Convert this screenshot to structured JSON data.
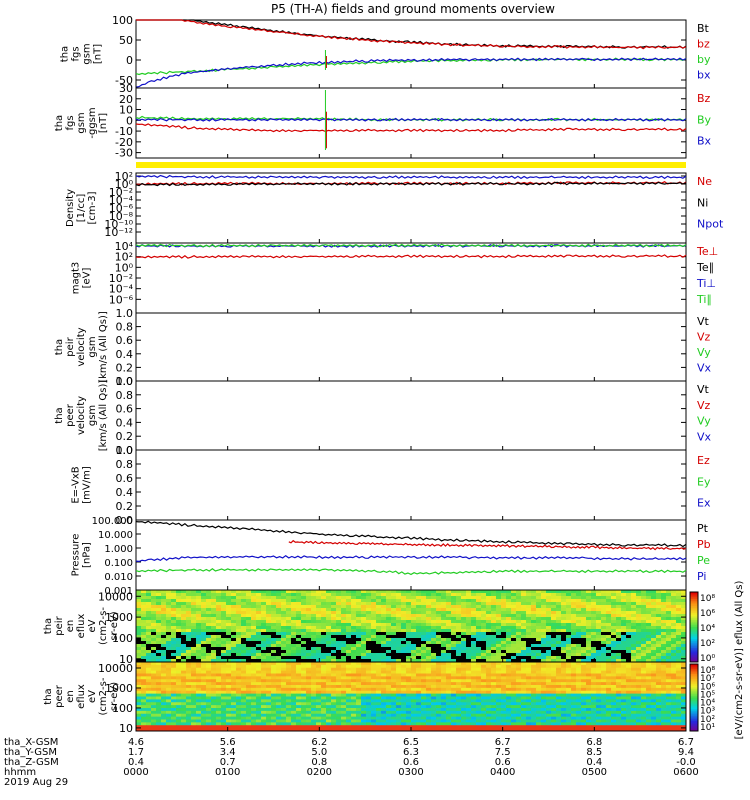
{
  "title": "P5 (TH-A) fields and ground moments overview",
  "colors": {
    "black": "#000000",
    "red": "#d40000",
    "green": "#22cc22",
    "blue": "#1010c8",
    "yellow": "#ffee00",
    "frame": "#000000"
  },
  "chart_data": [
    {
      "type": "line",
      "panel": "fgs-gsm",
      "ylabel": [
        "tha",
        "fgs",
        "gsm",
        "[nT]"
      ],
      "ylim": [
        -70,
        100
      ],
      "yticks": [
        100,
        50,
        0,
        -50
      ],
      "legend": [
        {
          "label": "Bt",
          "color": "black"
        },
        {
          "label": "bz",
          "color": "red"
        },
        {
          "label": "by",
          "color": "green"
        },
        {
          "label": "bx",
          "color": "blue"
        }
      ],
      "series": [
        {
          "name": "Bt",
          "color": "black",
          "x": [
            0,
            10,
            20,
            30,
            40,
            50,
            60,
            70,
            80,
            90,
            100,
            110,
            120,
            130,
            140,
            150,
            160,
            170,
            180,
            190,
            200,
            220,
            240,
            260,
            280,
            300,
            320,
            340,
            360
          ],
          "values": [
            133,
            122,
            112,
            104,
            97,
            91,
            86,
            81,
            76,
            72,
            68,
            63,
            59,
            56,
            53,
            50,
            47,
            45,
            43,
            41,
            39,
            36,
            34,
            33,
            32,
            32,
            31,
            31,
            31
          ]
        },
        {
          "name": "bz",
          "color": "red",
          "x": [
            0,
            10,
            20,
            30,
            40,
            50,
            60,
            70,
            80,
            90,
            100,
            110,
            120,
            130,
            140,
            150,
            160,
            170,
            180,
            190,
            200,
            220,
            240,
            260,
            280,
            300,
            320,
            340,
            360
          ],
          "values": [
            123,
            114,
            106,
            99,
            93,
            87,
            83,
            78,
            74,
            70,
            66,
            61,
            58,
            55,
            52,
            49,
            46,
            44,
            42,
            40,
            38,
            35,
            33,
            32,
            31,
            31,
            30,
            30,
            30
          ]
        },
        {
          "name": "by",
          "color": "green",
          "x": [
            0,
            20,
            40,
            60,
            80,
            100,
            120,
            140,
            160,
            180,
            200,
            240,
            280,
            320,
            360
          ],
          "values": [
            -37,
            -33,
            -29,
            -25,
            -21,
            -17,
            -13,
            -10,
            -7,
            -5,
            -3,
            -1,
            0,
            0,
            0
          ]
        },
        {
          "name": "bx",
          "color": "blue",
          "x": [
            0,
            10,
            20,
            30,
            40,
            60,
            80,
            100,
            120,
            140,
            160,
            180,
            200,
            240,
            280,
            320,
            360
          ],
          "values": [
            -70,
            -56,
            -45,
            -37,
            -31,
            -23,
            -17,
            -12,
            -8,
            -5,
            -3,
            -2,
            -1,
            0,
            0,
            0,
            0
          ]
        }
      ]
    },
    {
      "type": "line",
      "panel": "fgs-gse",
      "ylabel": [
        "tha",
        "fgs",
        "gsm",
        "-ggsm",
        "[nT]"
      ],
      "ylim": [
        -35,
        30
      ],
      "yticks": [
        30,
        20,
        10,
        0,
        -10,
        -20,
        -30
      ],
      "legend": [
        {
          "label": "Bz",
          "color": "red"
        },
        {
          "label": "By",
          "color": "green"
        },
        {
          "label": "Bx",
          "color": "blue"
        }
      ],
      "series": [
        {
          "name": "Bz",
          "color": "red",
          "x": [
            0,
            20,
            40,
            60,
            80,
            100,
            120,
            140,
            160,
            200,
            240,
            280,
            320,
            360
          ],
          "values": [
            -4,
            -6,
            -8,
            -9,
            -10,
            -10,
            -10,
            -10,
            -10,
            -10,
            -10,
            -9,
            -9,
            -9
          ]
        },
        {
          "name": "By",
          "color": "green",
          "x": [
            0,
            40,
            80,
            120,
            160,
            200,
            240,
            280,
            320,
            360
          ],
          "values": [
            2,
            1,
            1,
            1,
            0,
            0,
            0,
            0,
            0,
            0
          ]
        },
        {
          "name": "Bx",
          "color": "blue",
          "x": [
            0,
            40,
            80,
            120,
            160,
            200,
            240,
            280,
            320,
            360
          ],
          "values": [
            0,
            0,
            0,
            0,
            0,
            0,
            0,
            0,
            0,
            0
          ]
        }
      ]
    },
    {
      "type": "line",
      "panel": "density",
      "ylabel": [
        "Density",
        "[1/cc]",
        "[cm-3]"
      ],
      "ylog": true,
      "ylim": [
        1e-14,
        100
      ],
      "ytick_labels": [
        "10²",
        "10⁰",
        "10⁻²",
        "10⁻⁴",
        "10⁻⁶",
        "10⁻⁸",
        "10⁻¹⁰",
        "10⁻¹²"
      ],
      "legend": [
        {
          "label": "Ne",
          "color": "red"
        },
        {
          "label": "Ni",
          "color": "black"
        },
        {
          "label": "Npot",
          "color": "blue"
        }
      ],
      "series": [
        {
          "name": "Ne",
          "color": "red",
          "x": [
            0,
            60,
            120,
            180,
            240,
            300,
            360
          ],
          "values": [
            0.2,
            0.3,
            0.3,
            0.3,
            0.3,
            0.4,
            0.4
          ]
        },
        {
          "name": "Ni",
          "color": "black",
          "x": [
            0,
            60,
            120,
            180,
            240,
            300,
            360
          ],
          "values": [
            0.15,
            0.2,
            0.25,
            0.25,
            0.25,
            0.3,
            0.3
          ]
        },
        {
          "name": "Npot",
          "color": "blue",
          "x": [
            0,
            60,
            120,
            180,
            240,
            300,
            360
          ],
          "values": [
            12,
            9,
            8,
            8,
            8,
            8,
            8
          ]
        }
      ]
    },
    {
      "type": "line",
      "panel": "temperature",
      "ylabel": [
        "magt3",
        "[eV]"
      ],
      "ylog": true,
      "ylim": [
        1e-08,
        10000.0
      ],
      "ytick_labels": [
        "10⁴",
        "10²",
        "10⁰",
        "10⁻²",
        "10⁻⁴",
        "10⁻⁶"
      ],
      "legend": [
        {
          "label": "Te⊥",
          "color": "red"
        },
        {
          "label": "Te∥",
          "color": "black"
        },
        {
          "label": "Ti⊥",
          "color": "blue"
        },
        {
          "label": "Ti∥",
          "color": "green"
        }
      ],
      "series": [
        {
          "name": "Te⊥",
          "color": "red",
          "x": [
            0,
            60,
            120,
            180,
            240,
            300,
            360
          ],
          "values": [
            30,
            35,
            40,
            40,
            40,
            45,
            45
          ]
        },
        {
          "name": "Ti⊥",
          "color": "blue",
          "x": [
            0,
            60,
            120,
            180,
            240,
            300,
            360
          ],
          "values": [
            2500,
            2400,
            2400,
            2500,
            2500,
            2500,
            2500
          ]
        },
        {
          "name": "Ti∥",
          "color": "green",
          "x": [
            0,
            60,
            120,
            180,
            240,
            300,
            360
          ],
          "values": [
            3000,
            2900,
            2900,
            3000,
            3000,
            3000,
            3000
          ]
        }
      ]
    },
    {
      "type": "line",
      "panel": "peir-velocity",
      "ylabel": [
        "tha",
        "peir",
        "velocity",
        "gsm",
        "[km/s (All Qs)]"
      ],
      "ylim": [
        0,
        1
      ],
      "yticks": [
        "1.0",
        "0.8",
        "0.6",
        "0.4",
        "0.2",
        "0.0"
      ],
      "legend": [
        {
          "label": "Vt",
          "color": "black"
        },
        {
          "label": "Vz",
          "color": "red"
        },
        {
          "label": "Vy",
          "color": "green"
        },
        {
          "label": "Vx",
          "color": "blue"
        }
      ],
      "series": []
    },
    {
      "type": "line",
      "panel": "peer-velocity",
      "ylabel": [
        "tha",
        "peer",
        "velocity",
        "gsm",
        "[km/s (All Qs)]"
      ],
      "ylim": [
        0,
        1
      ],
      "yticks": [
        "1.0",
        "0.8",
        "0.6",
        "0.4",
        "0.2",
        "0.0"
      ],
      "legend": [
        {
          "label": "Vt",
          "color": "black"
        },
        {
          "label": "Vz",
          "color": "red"
        },
        {
          "label": "Vy",
          "color": "green"
        },
        {
          "label": "Vx",
          "color": "blue"
        }
      ],
      "series": []
    },
    {
      "type": "line",
      "panel": "efield",
      "ylabel": [
        "E=-VxB",
        "[mV/m]"
      ],
      "ylim": [
        0,
        1
      ],
      "yticks": [
        "1.0",
        "0.8",
        "0.6",
        "0.4",
        "0.2",
        "0.0"
      ],
      "legend": [
        {
          "label": "Ez",
          "color": "red"
        },
        {
          "label": "Ey",
          "color": "green"
        },
        {
          "label": "Ex",
          "color": "blue"
        }
      ],
      "series": []
    },
    {
      "type": "line",
      "panel": "pressure",
      "ylabel": [
        "Pressure",
        "[nPa]"
      ],
      "ylog": true,
      "ylim": [
        0.001,
        100
      ],
      "yticks": [
        "100.000",
        "10.000",
        "1.000",
        "0.100",
        "0.010",
        "0.001"
      ],
      "legend": [
        {
          "label": "Pt",
          "color": "black"
        },
        {
          "label": "Pb",
          "color": "red"
        },
        {
          "label": "Pe",
          "color": "green"
        },
        {
          "label": "Pi",
          "color": "blue"
        }
      ],
      "series": [
        {
          "name": "Pt",
          "color": "black",
          "x": [
            0,
            20,
            40,
            60,
            80,
            100,
            120,
            140,
            160,
            180,
            200,
            240,
            280,
            320,
            360
          ],
          "values": [
            70,
            50,
            35,
            25,
            18,
            13,
            9,
            7,
            5.5,
            4.5,
            3.5,
            2.5,
            1.8,
            1.5,
            1.4
          ]
        },
        {
          "name": "Pb",
          "color": "red",
          "x": [
            100,
            120,
            140,
            160,
            180,
            200,
            240,
            280,
            320,
            360
          ],
          "values": [
            2.5,
            2.2,
            2.0,
            1.8,
            1.6,
            1.5,
            1.3,
            1.1,
            0.9,
            0.8
          ]
        },
        {
          "name": "Pe",
          "color": "green",
          "x": [
            0,
            40,
            80,
            120,
            160,
            180,
            200,
            240,
            280,
            320,
            360
          ],
          "values": [
            0.02,
            0.025,
            0.025,
            0.025,
            0.02,
            0.013,
            0.015,
            0.02,
            0.02,
            0.02,
            0.02
          ]
        },
        {
          "name": "Pi",
          "color": "blue",
          "x": [
            0,
            40,
            80,
            120,
            160,
            200,
            240,
            280,
            320,
            360
          ],
          "values": [
            0.1,
            0.2,
            0.22,
            0.2,
            0.2,
            0.2,
            0.18,
            0.18,
            0.15,
            0.15
          ]
        }
      ]
    },
    {
      "type": "heatmap",
      "panel": "peir-spectrogram",
      "ylabel": [
        "tha",
        "peir",
        "en",
        "eflux",
        "eV",
        "(cm2-s-",
        "sr-eV)"
      ],
      "ylog": true,
      "ylim": [
        7,
        20000
      ],
      "yticks": [
        "10000",
        "1000",
        "100",
        "10"
      ]
    },
    {
      "type": "heatmap",
      "panel": "peer-spectrogram",
      "ylabel": [
        "tha",
        "peer",
        "en",
        "eflux",
        "eV",
        "(cm2-s-",
        "sr-eV)"
      ],
      "ylog": true,
      "ylim": [
        7,
        20000
      ],
      "yticks": [
        "10000",
        "1000",
        "100",
        "10"
      ]
    }
  ],
  "colorbars": {
    "ticks_top": [
      "10⁸",
      "10⁶",
      "10⁴",
      "10²",
      "10⁰"
    ],
    "ticks_bottom": [
      "10⁸",
      "10⁷",
      "10⁶",
      "10⁵",
      "10⁴",
      "10³",
      "10²",
      "10¹"
    ],
    "label": "[eV/(cm2-s-sr-eV)] eflux (All Qs)"
  },
  "x_axis": {
    "range_minutes": [
      0,
      360
    ],
    "rows": [
      {
        "label": "tha_X-GSM",
        "values": [
          "4.6",
          "5.6",
          "6.2",
          "6.5",
          "6.7",
          "6.8",
          "6.7"
        ]
      },
      {
        "label": "tha_Y-GSM",
        "values": [
          "1.7",
          "3.4",
          "5.0",
          "6.3",
          "7.5",
          "8.5",
          "9.4"
        ]
      },
      {
        "label": "tha_Z-GSM",
        "values": [
          "0.4",
          "0.7",
          "0.8",
          "0.6",
          "0.6",
          "0.4",
          "-0.0"
        ]
      },
      {
        "label": "hhmm",
        "values": [
          "0000",
          "0100",
          "0200",
          "0300",
          "0400",
          "0500",
          "0600"
        ]
      }
    ],
    "date": "2019 Aug 29"
  }
}
